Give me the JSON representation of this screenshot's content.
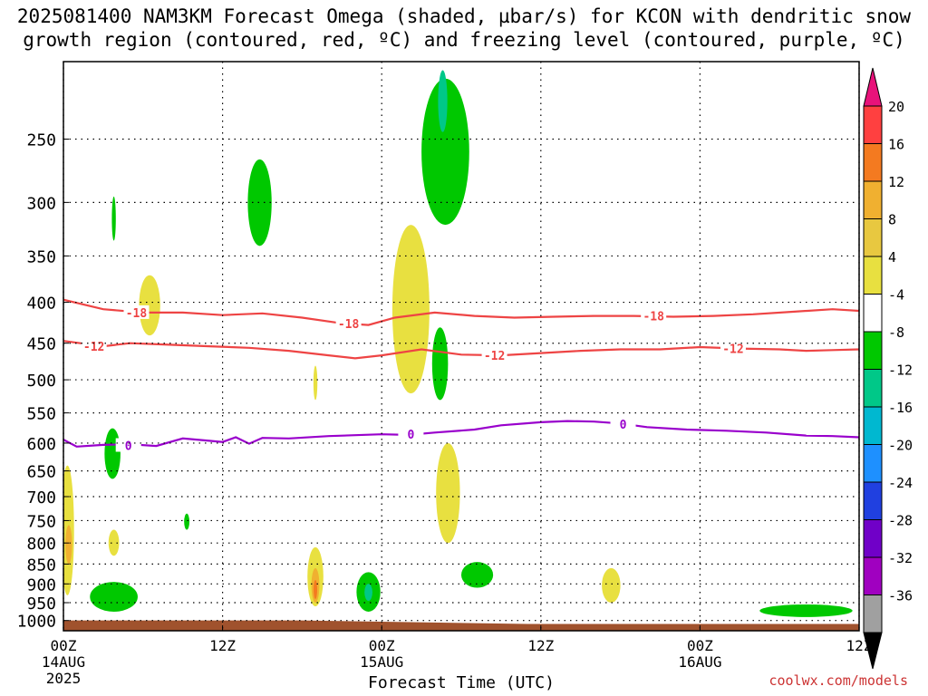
{
  "chart_data": {
    "type": "heatmap",
    "title_line1": "2025081400 NAM3KM Forecast Omega (shaded, µbar/s) for KCON with dendritic snow",
    "title_line2": "growth region (contoured, red, ºC) and freezing level (contoured, purple, ºC)",
    "xlabel": "Forecast Time (UTC)",
    "x_ticks": [
      {
        "hours": 0,
        "label": "00Z",
        "sub1": "14AUG",
        "sub2": "2025"
      },
      {
        "hours": 12,
        "label": "12Z",
        "sub1": "",
        "sub2": ""
      },
      {
        "hours": 24,
        "label": "00Z",
        "sub1": "15AUG",
        "sub2": ""
      },
      {
        "hours": 36,
        "label": "12Z",
        "sub1": "",
        "sub2": ""
      },
      {
        "hours": 48,
        "label": "00Z",
        "sub1": "16AUG",
        "sub2": ""
      },
      {
        "hours": 60,
        "label": "12Z",
        "sub1": "",
        "sub2": ""
      }
    ],
    "xlim_hours": [
      0,
      60
    ],
    "y_ticks": [
      250,
      300,
      350,
      400,
      450,
      500,
      550,
      600,
      650,
      700,
      750,
      800,
      850,
      900,
      950,
      1000
    ],
    "ylim_hpa": [
      200,
      1030
    ],
    "y_scale": "log-pressure",
    "grid": true,
    "colorbar": {
      "labels": [
        "20",
        "16",
        "12",
        "8",
        "4",
        "-4",
        "-8",
        "-12",
        "-16",
        "-20",
        "-24",
        "-28",
        "-32",
        "-36"
      ],
      "colors": [
        "#ff4040",
        "#f47a20",
        "#f0b030",
        "#e8c840",
        "#e8e040",
        "#ffffff",
        "#00c800",
        "#00c888",
        "#00b8d0",
        "#1e90ff",
        "#2040e0",
        "#7000c8",
        "#a000c0",
        "#a0a0a0"
      ],
      "top_color": "#e8127a",
      "bottom_color": "#000000"
    },
    "contours": [
      {
        "label": "-18",
        "color": "#ee4444",
        "points": [
          [
            0,
            397
          ],
          [
            3,
            408
          ],
          [
            6,
            412
          ],
          [
            9,
            412
          ],
          [
            12,
            415
          ],
          [
            15,
            413
          ],
          [
            18,
            418
          ],
          [
            21,
            425
          ],
          [
            23,
            427
          ],
          [
            25,
            418
          ],
          [
            28,
            412
          ],
          [
            31,
            416
          ],
          [
            34,
            418
          ],
          [
            37,
            417
          ],
          [
            40,
            416
          ],
          [
            43,
            416
          ],
          [
            46,
            417
          ],
          [
            49,
            416
          ],
          [
            52,
            414
          ],
          [
            55,
            411
          ],
          [
            58,
            408
          ],
          [
            60,
            410
          ]
        ],
        "label_at": [
          [
            5.5,
            412
          ],
          [
            21.5,
            425
          ],
          [
            44.5,
            416
          ]
        ]
      },
      {
        "label": "-12",
        "color": "#ee4444",
        "points": [
          [
            0,
            447
          ],
          [
            3,
            454
          ],
          [
            5,
            450
          ],
          [
            8,
            452
          ],
          [
            11,
            454
          ],
          [
            14,
            456
          ],
          [
            17,
            460
          ],
          [
            20,
            466
          ],
          [
            22,
            470
          ],
          [
            24,
            466
          ],
          [
            27,
            458
          ],
          [
            30,
            465
          ],
          [
            33,
            466
          ],
          [
            36,
            463
          ],
          [
            39,
            460
          ],
          [
            42,
            458
          ],
          [
            45,
            458
          ],
          [
            48,
            455
          ],
          [
            51,
            457
          ],
          [
            54,
            458
          ],
          [
            56,
            460
          ],
          [
            58,
            459
          ],
          [
            60,
            458
          ]
        ],
        "label_at": [
          [
            2.3,
            454
          ],
          [
            32.5,
            466
          ],
          [
            50.5,
            457
          ]
        ]
      },
      {
        "label": "0",
        "color": "#9900cc",
        "points": [
          [
            0,
            594
          ],
          [
            1,
            606
          ],
          [
            3,
            603
          ],
          [
            5,
            602
          ],
          [
            7,
            605
          ],
          [
            9,
            592
          ],
          [
            11,
            596
          ],
          [
            12,
            598
          ],
          [
            13,
            590
          ],
          [
            14,
            601
          ],
          [
            15,
            591
          ],
          [
            17,
            592
          ],
          [
            20,
            588
          ],
          [
            24,
            585
          ],
          [
            26,
            586
          ],
          [
            28,
            582
          ],
          [
            31,
            577
          ],
          [
            33,
            570
          ],
          [
            36,
            565
          ],
          [
            38,
            563
          ],
          [
            40,
            564
          ],
          [
            42,
            567
          ],
          [
            44,
            573
          ],
          [
            47,
            577
          ],
          [
            50,
            579
          ],
          [
            53,
            582
          ],
          [
            56,
            587
          ],
          [
            58,
            588
          ],
          [
            60,
            590
          ]
        ],
        "label_at": [
          [
            4.9,
            604
          ],
          [
            26.2,
            585
          ],
          [
            42.2,
            568
          ]
        ]
      }
    ],
    "shaded_regions": [
      {
        "value_range": "4 to 8",
        "color": "#e8e040",
        "center": [
          6.5,
          385
        ],
        "hours_halfwidth": 0.8,
        "hpa_range": [
          370,
          440
        ]
      },
      {
        "value_range": "4 to 8",
        "color": "#e8e040",
        "center": [
          0.3,
          780
        ],
        "hours_halfwidth": 0.5,
        "hpa_range": [
          640,
          930
        ]
      },
      {
        "value_range": "4 to 8",
        "color": "#e8e040",
        "center": [
          3.8,
          795
        ],
        "hours_halfwidth": 0.4,
        "hpa_range": [
          770,
          830
        ]
      },
      {
        "value_range": "4 to 8",
        "color": "#e8e040",
        "center": [
          19.0,
          890
        ],
        "hours_halfwidth": 0.6,
        "hpa_range": [
          810,
          960
        ]
      },
      {
        "value_range": "4 to 8",
        "color": "#e8e040",
        "center": [
          26.2,
          420
        ],
        "hours_halfwidth": 1.4,
        "hpa_range": [
          320,
          520
        ]
      },
      {
        "value_range": "4 to 8",
        "color": "#e8e040",
        "center": [
          29.0,
          700
        ],
        "hours_halfwidth": 0.9,
        "hpa_range": [
          600,
          800
        ]
      },
      {
        "value_range": "4 to 8",
        "color": "#e8e040",
        "center": [
          41.3,
          905
        ],
        "hours_halfwidth": 0.7,
        "hpa_range": [
          860,
          950
        ]
      },
      {
        "value_range": "4 to 8",
        "color": "#e8e040",
        "center": [
          19.0,
          490
        ],
        "hours_halfwidth": 0.15,
        "hpa_range": [
          480,
          530
        ]
      },
      {
        "value_range": "-8 to -4",
        "color": "#00c800",
        "center": [
          14.8,
          300
        ],
        "hours_halfwidth": 0.9,
        "hpa_range": [
          265,
          340
        ]
      },
      {
        "value_range": "-8 to -4",
        "color": "#00c800",
        "center": [
          28.8,
          245
        ],
        "hours_halfwidth": 1.8,
        "hpa_range": [
          210,
          320
        ]
      },
      {
        "value_range": "-8 to -4",
        "color": "#00c800",
        "center": [
          28.4,
          470
        ],
        "hours_halfwidth": 0.6,
        "hpa_range": [
          430,
          530
        ]
      },
      {
        "value_range": "-8 to -4",
        "color": "#00c800",
        "center": [
          3.8,
          310
        ],
        "hours_halfwidth": 0.15,
        "hpa_range": [
          295,
          335
        ]
      },
      {
        "value_range": "-8 to -4",
        "color": "#00c800",
        "center": [
          3.7,
          620
        ],
        "hours_halfwidth": 0.6,
        "hpa_range": [
          575,
          665
        ]
      },
      {
        "value_range": "-8 to -4",
        "color": "#00c800",
        "center": [
          9.3,
          750
        ],
        "hours_halfwidth": 0.2,
        "hpa_range": [
          735,
          770
        ]
      },
      {
        "value_range": "-8 to -4",
        "color": "#00c800",
        "center": [
          3.8,
          930
        ],
        "hours_halfwidth": 1.8,
        "hpa_range": [
          895,
          975
        ]
      },
      {
        "value_range": "-8 to -4",
        "color": "#00c800",
        "center": [
          23.0,
          920
        ],
        "hours_halfwidth": 0.9,
        "hpa_range": [
          870,
          975
        ]
      },
      {
        "value_range": "-8 to -4",
        "color": "#00c800",
        "center": [
          31.2,
          870
        ],
        "hours_halfwidth": 1.2,
        "hpa_range": [
          845,
          910
        ]
      },
      {
        "value_range": "-8 to -4",
        "color": "#00c800",
        "center": [
          56.0,
          975
        ],
        "hours_halfwidth": 3.5,
        "hpa_range": [
          955,
          990
        ]
      },
      {
        "value_range": "-12 to -8",
        "color": "#00c888",
        "center": [
          28.6,
          225
        ],
        "hours_halfwidth": 0.35,
        "hpa_range": [
          205,
          245
        ]
      },
      {
        "value_range": "-12 to -8",
        "color": "#00c888",
        "center": [
          23.0,
          920
        ],
        "hours_halfwidth": 0.3,
        "hpa_range": [
          900,
          945
        ]
      },
      {
        "value_range": "8 to 12",
        "color": "#f0b030",
        "center": [
          0.4,
          800
        ],
        "hours_halfwidth": 0.25,
        "hpa_range": [
          760,
          850
        ]
      },
      {
        "value_range": "8 to 12",
        "color": "#f0b030",
        "center": [
          19.0,
          910
        ],
        "hours_halfwidth": 0.3,
        "hpa_range": [
          860,
          950
        ]
      },
      {
        "value_range": "12 to 16",
        "color": "#f47a20",
        "center": [
          19.0,
          915
        ],
        "hours_halfwidth": 0.12,
        "hpa_range": [
          890,
          940
        ]
      }
    ],
    "terrain": {
      "color": "#a0522d",
      "hpa_top_start": 1000,
      "hpa_top_end": 1010
    }
  },
  "credit": "coolwx.com/models"
}
